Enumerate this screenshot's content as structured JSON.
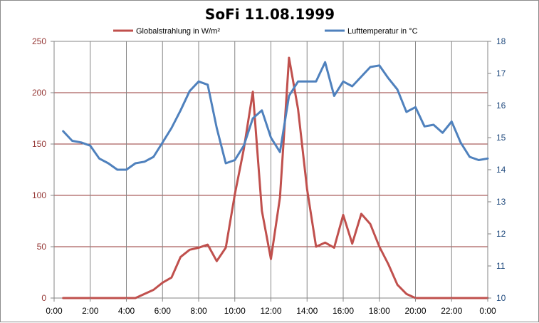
{
  "chart_data": {
    "type": "line",
    "title": "SoFi 11.08.1999",
    "x_tick_labels": [
      "0:00",
      "2:00",
      "4:00",
      "6:00",
      "8:00",
      "10:00",
      "12:00",
      "14:00",
      "16:00",
      "18:00",
      "20:00",
      "22:00",
      "0:00"
    ],
    "left_axis": {
      "ylim": [
        0,
        250
      ],
      "ticks": [
        0,
        50,
        100,
        150,
        200,
        250
      ],
      "color": "#953735"
    },
    "right_axis": {
      "ylim": [
        10,
        18
      ],
      "ticks": [
        10,
        11,
        12,
        13,
        14,
        15,
        16,
        17,
        18
      ],
      "color": "#1f497d"
    },
    "grid": true,
    "legend_position": "top",
    "series": [
      {
        "name": "Globalstrahlung in W/m²",
        "axis": "left",
        "color": "#c0504d",
        "x": [
          0.5,
          1,
          1.5,
          2,
          2.5,
          3,
          3.5,
          4,
          4.5,
          5,
          5.5,
          6,
          6.5,
          7,
          7.5,
          8,
          8.5,
          9,
          9.5,
          10,
          10.5,
          11,
          11.5,
          12,
          12.5,
          13,
          13.5,
          14,
          14.5,
          15,
          15.5,
          16,
          16.5,
          17,
          17.5,
          18,
          18.5,
          19,
          19.5,
          20,
          20.5,
          21,
          21.5,
          22,
          22.5,
          23,
          23.5,
          24
        ],
        "values": [
          0,
          0,
          0,
          0,
          0,
          0,
          0,
          0,
          0,
          4,
          8,
          15,
          20,
          40,
          47,
          49,
          52,
          36,
          49,
          101,
          145,
          201,
          85,
          38,
          98,
          234,
          184,
          106,
          50,
          54,
          49,
          81,
          53,
          82,
          72,
          50,
          33,
          13,
          4,
          0,
          0,
          0,
          0,
          0,
          0,
          0,
          0,
          0
        ]
      },
      {
        "name": "Lufttemperatur in °C",
        "axis": "right",
        "color": "#4f81bd",
        "x": [
          0.5,
          1,
          1.5,
          2,
          2.5,
          3,
          3.5,
          4,
          4.5,
          5,
          5.5,
          6,
          6.5,
          7,
          7.5,
          8,
          8.5,
          9,
          9.5,
          10,
          10.5,
          11,
          11.5,
          12,
          12.5,
          13,
          13.5,
          14,
          14.5,
          15,
          15.5,
          16,
          16.5,
          17,
          17.5,
          18,
          18.5,
          19,
          19.5,
          20,
          20.5,
          21,
          21.5,
          22,
          22.5,
          23,
          23.5,
          24
        ],
        "values": [
          15.2,
          14.9,
          14.85,
          14.75,
          14.35,
          14.2,
          14.0,
          14.0,
          14.2,
          14.25,
          14.4,
          14.85,
          15.3,
          15.85,
          16.45,
          16.75,
          16.65,
          15.3,
          14.2,
          14.3,
          14.75,
          15.6,
          15.85,
          15.0,
          14.55,
          16.3,
          16.75,
          16.75,
          16.75,
          17.35,
          16.3,
          16.75,
          16.6,
          16.9,
          17.2,
          17.25,
          16.85,
          16.5,
          15.8,
          15.95,
          15.35,
          15.4,
          15.15,
          15.5,
          14.85,
          14.4,
          14.3,
          14.35
        ]
      }
    ]
  }
}
